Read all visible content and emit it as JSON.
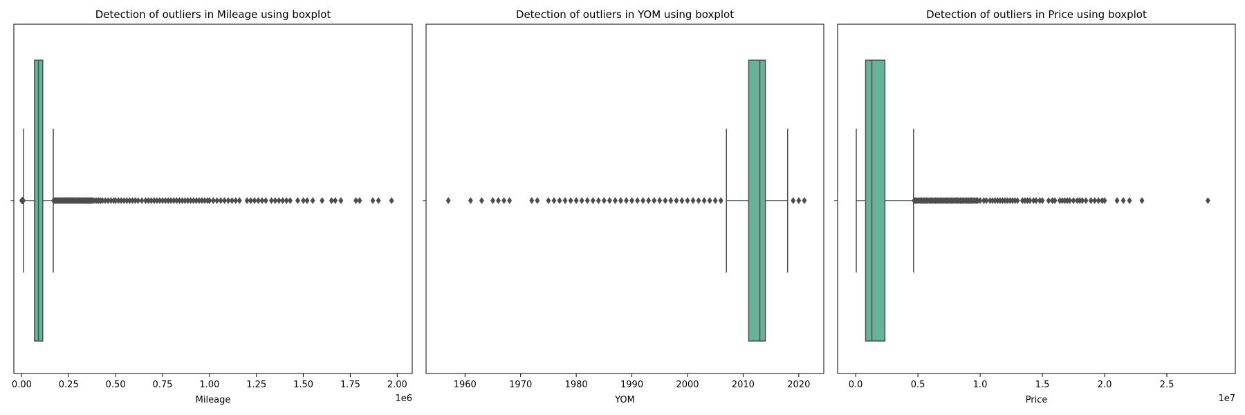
{
  "chart_data": [
    {
      "type": "boxplot",
      "title": "Detection of outliers in Mileage using boxplot",
      "xlabel": "Mileage",
      "offset_text": "1e6",
      "xlim": [
        -42000,
        2080000
      ],
      "xticks": [
        0,
        250000,
        500000,
        750000,
        1000000,
        1250000,
        1500000,
        1750000,
        2000000
      ],
      "xtick_labels": [
        "0.00",
        "0.25",
        "0.50",
        "0.75",
        "1.00",
        "1.25",
        "1.50",
        "1.75",
        "2.00"
      ],
      "box": {
        "whisker_low": 10000,
        "q1": 68000,
        "median": 89000,
        "q3": 112000,
        "whisker_high": 168000
      },
      "low_outliers": [
        0,
        1000,
        2000,
        3000,
        4000,
        5000,
        6000,
        7000,
        8000
      ],
      "high_outliers": [
        170000,
        175000,
        180000,
        185000,
        190000,
        195000,
        200000,
        205000,
        210000,
        215000,
        220000,
        225000,
        230000,
        235000,
        240000,
        245000,
        250000,
        255000,
        260000,
        265000,
        270000,
        275000,
        280000,
        285000,
        290000,
        295000,
        300000,
        305000,
        310000,
        315000,
        320000,
        325000,
        330000,
        335000,
        340000,
        345000,
        350000,
        355000,
        360000,
        365000,
        370000,
        375000,
        380000,
        390000,
        400000,
        410000,
        420000,
        430000,
        445000,
        460000,
        475000,
        490000,
        500000,
        515000,
        530000,
        545000,
        560000,
        575000,
        590000,
        605000,
        620000,
        640000,
        660000,
        675000,
        690000,
        705000,
        720000,
        735000,
        750000,
        765000,
        780000,
        795000,
        810000,
        825000,
        840000,
        855000,
        870000,
        885000,
        900000,
        915000,
        930000,
        945000,
        960000,
        975000,
        990000,
        1000000,
        1020000,
        1040000,
        1060000,
        1080000,
        1100000,
        1120000,
        1140000,
        1160000,
        1200000,
        1220000,
        1240000,
        1260000,
        1280000,
        1300000,
        1330000,
        1350000,
        1370000,
        1390000,
        1410000,
        1430000,
        1470000,
        1500000,
        1520000,
        1550000,
        1600000,
        1650000,
        1670000,
        1700000,
        1780000,
        1800000,
        1870000,
        1900000,
        1970000
      ]
    },
    {
      "type": "boxplot",
      "title": "Detection of outliers in YOM using boxplot",
      "xlabel": "YOM",
      "offset_text": "",
      "xlim": [
        1953,
        2024.5
      ],
      "xticks": [
        1960,
        1970,
        1980,
        1990,
        2000,
        2010,
        2020
      ],
      "xtick_labels": [
        "1960",
        "1970",
        "1980",
        "1990",
        "2000",
        "2010",
        "2020"
      ],
      "box": {
        "whisker_low": 2007,
        "q1": 2011,
        "median": 2013,
        "q3": 2014,
        "whisker_high": 2018
      },
      "low_outliers": [
        1957,
        1961,
        1963,
        1965,
        1966,
        1967,
        1968,
        1972,
        1973,
        1975,
        1976,
        1977,
        1978,
        1979,
        1980,
        1981,
        1982,
        1983,
        1984,
        1985,
        1986,
        1987,
        1988,
        1989,
        1990,
        1991,
        1992,
        1993,
        1994,
        1995,
        1996,
        1997,
        1998,
        1999,
        2000,
        2001,
        2002,
        2003,
        2004,
        2005,
        2006
      ],
      "high_outliers": [
        2019,
        2020,
        2021
      ]
    },
    {
      "type": "boxplot",
      "title": "Detection of outliers in Price using boxplot",
      "xlabel": "Price",
      "offset_text": "1e7",
      "xlim": [
        -1450000,
        30500000
      ],
      "xticks": [
        0,
        5000000,
        10000000,
        15000000,
        20000000,
        25000000
      ],
      "xtick_labels": [
        "0.0",
        "0.5",
        "1.0",
        "1.5",
        "2.0",
        "2.5"
      ],
      "box": {
        "whisker_low": 50000,
        "q1": 800000,
        "median": 1300000,
        "q3": 2350000,
        "whisker_high": 4650000
      },
      "low_outliers": [],
      "high_outliers": [
        4700000,
        4800000,
        4900000,
        5000000,
        5100000,
        5200000,
        5300000,
        5400000,
        5500000,
        5600000,
        5700000,
        5800000,
        5900000,
        6000000,
        6100000,
        6200000,
        6300000,
        6400000,
        6500000,
        6600000,
        6700000,
        6800000,
        6900000,
        7000000,
        7100000,
        7200000,
        7300000,
        7400000,
        7500000,
        7600000,
        7700000,
        7800000,
        7900000,
        8000000,
        8100000,
        8200000,
        8300000,
        8400000,
        8500000,
        8600000,
        8700000,
        8800000,
        8900000,
        9000000,
        9100000,
        9200000,
        9300000,
        9400000,
        9500000,
        9600000,
        9700000,
        9800000,
        10000000,
        10300000,
        10500000,
        10800000,
        11000000,
        11200000,
        11400000,
        11600000,
        11800000,
        12000000,
        12200000,
        12400000,
        12600000,
        12800000,
        13000000,
        13400000,
        13600000,
        13800000,
        14000000,
        14300000,
        14500000,
        14800000,
        15000000,
        15500000,
        15800000,
        16000000,
        16400000,
        16600000,
        16800000,
        17000000,
        17200000,
        17500000,
        17800000,
        18000000,
        18200000,
        18500000,
        18900000,
        19200000,
        19500000,
        19800000,
        20000000,
        21000000,
        21500000,
        22000000,
        23000000,
        28300000
      ]
    }
  ],
  "style": {
    "box_color": "#66b39a",
    "line_color": "#4d4d4d"
  }
}
